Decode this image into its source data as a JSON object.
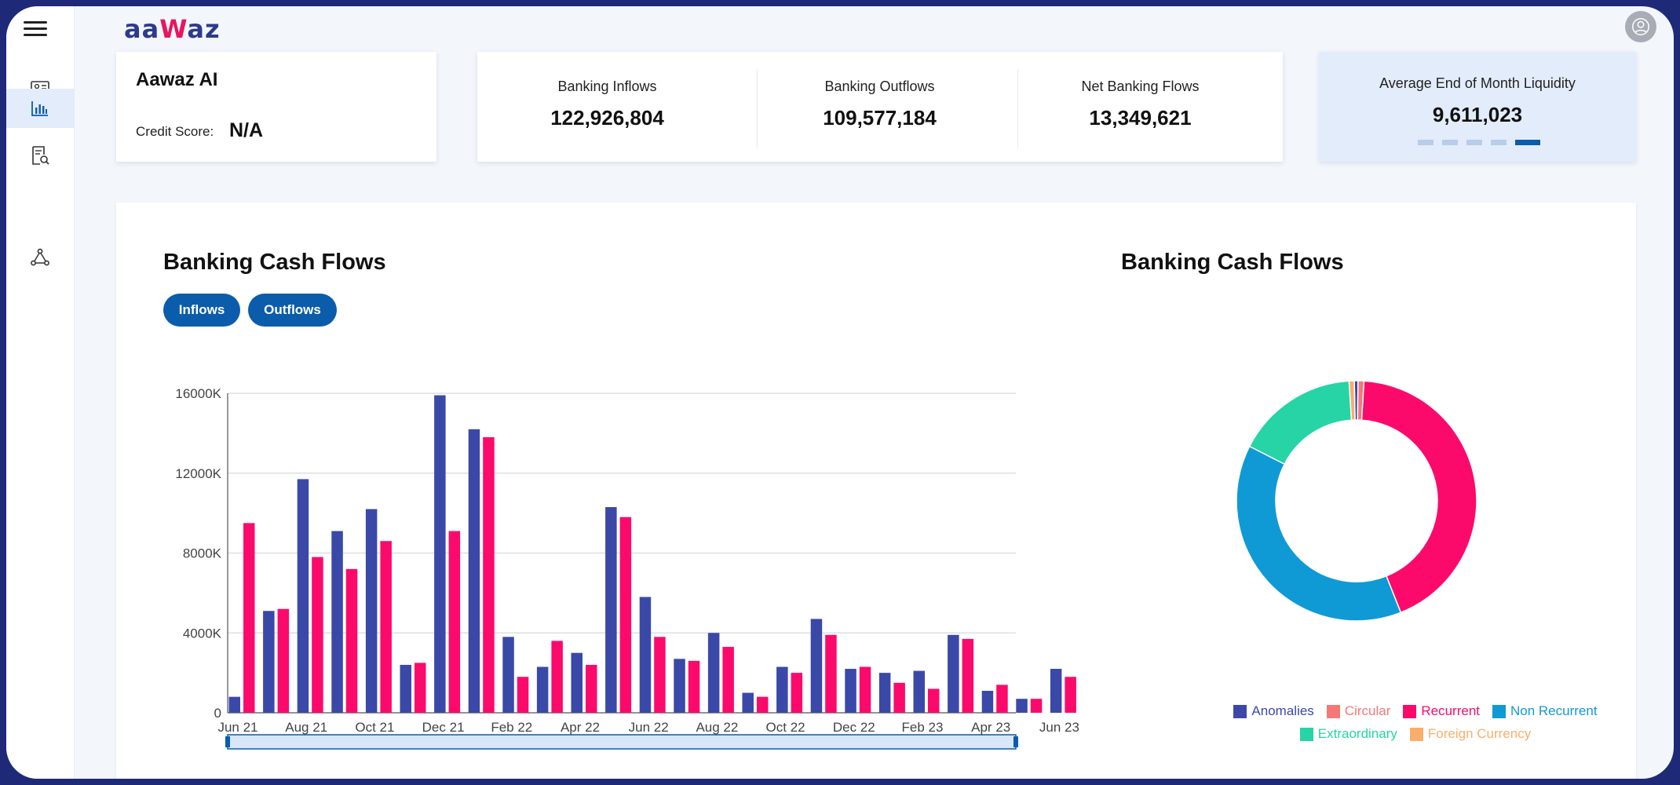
{
  "app": {
    "logo_prefix": "aa",
    "logo_w": "W",
    "logo_suffix": "az"
  },
  "sidebar": {
    "items": [
      {
        "icon": "id-card-icon"
      },
      {
        "icon": "bar-chart-icon",
        "active": true
      },
      {
        "icon": "document-search-icon"
      },
      {
        "icon": "network-icon"
      }
    ]
  },
  "profile": {
    "company": "Aawaz AI",
    "credit_score_label": "Credit Score:",
    "credit_score_value": "N/A"
  },
  "flows": [
    {
      "label": "Banking Inflows",
      "value": "122,926,804"
    },
    {
      "label": "Banking Outflows",
      "value": "109,577,184"
    },
    {
      "label": "Net Banking Flows",
      "value": "13,349,621"
    }
  ],
  "liquidity": {
    "label": "Average End of Month Liquidity",
    "value": "9,611,023",
    "active_dot": 4,
    "dot_count": 5
  },
  "bar_section": {
    "title": "Banking Cash Flows",
    "inflows_button": "Inflows",
    "outflows_button": "Outflows"
  },
  "donut_section": {
    "title": "Banking Cash Flows"
  },
  "colors": {
    "inflow": "#3a49a8",
    "outflow": "#fb0a6c",
    "accent": "#0b5cab"
  },
  "chart_data": [
    {
      "type": "bar",
      "title": "Banking Cash Flows",
      "ylim": [
        0,
        16000000
      ],
      "yticks": [
        {
          "value": 0,
          "label": "0"
        },
        {
          "value": 4000000,
          "label": "4000K"
        },
        {
          "value": 8000000,
          "label": "8000K"
        },
        {
          "value": 12000000,
          "label": "12000K"
        },
        {
          "value": 16000000,
          "label": "16000K"
        }
      ],
      "categories": [
        "Jun 21",
        "Jul 21",
        "Aug 21",
        "Sep 21",
        "Oct 21",
        "Nov 21",
        "Dec 21",
        "Jan 22",
        "Feb 22",
        "Mar 22",
        "Apr 22",
        "May 22",
        "Jun 22",
        "Jul 22",
        "Aug 22",
        "Sep 22",
        "Oct 22",
        "Nov 22",
        "Dec 22",
        "Jan 23",
        "Feb 23",
        "Mar 23",
        "Apr 23",
        "May 23",
        "Jun 23"
      ],
      "xtick_labels": [
        "Jun 21",
        "Aug 21",
        "Oct 21",
        "Dec 21",
        "Feb 22",
        "Apr 22",
        "Jun 22",
        "Aug 22",
        "Oct 22",
        "Dec 22",
        "Feb 23",
        "Apr 23",
        "Jun 23"
      ],
      "series": [
        {
          "values": [
            800000,
            5100000,
            11700000,
            9100000,
            10200000,
            2400000,
            15900000,
            14200000,
            3800000,
            2300000,
            3000000,
            10300000,
            5800000,
            2700000,
            4000000,
            1000000,
            2300000,
            4700000,
            2200000,
            2000000,
            2100000,
            3900000,
            1100000,
            700000,
            2200000
          ]
        },
        {
          "values": [
            9500000,
            5200000,
            7800000,
            7200000,
            8600000,
            2500000,
            9100000,
            13800000,
            1800000,
            3600000,
            2400000,
            9800000,
            3800000,
            2600000,
            3300000,
            800000,
            2000000,
            3900000,
            2300000,
            1500000,
            1200000,
            3700000,
            1400000,
            700000,
            1800000
          ]
        }
      ],
      "grid": true
    },
    {
      "type": "pie",
      "title": "Banking Cash Flows",
      "legend_position": "bottom",
      "slices": [
        {
          "name": "Anomalies",
          "value": 0.5,
          "color": "#3a49a8"
        },
        {
          "name": "Circular",
          "value": 0.8,
          "color": "#f47878"
        },
        {
          "name": "Recurrent",
          "value": 43,
          "color": "#fb0a6c"
        },
        {
          "name": "Non Recurrent",
          "value": 38.5,
          "color": "#0f9ad6"
        },
        {
          "name": "Extraordinary",
          "value": 16.5,
          "color": "#26d4a6"
        },
        {
          "name": "Foreign Currency",
          "value": 0.7,
          "color": "#f9ae6a"
        }
      ]
    }
  ]
}
